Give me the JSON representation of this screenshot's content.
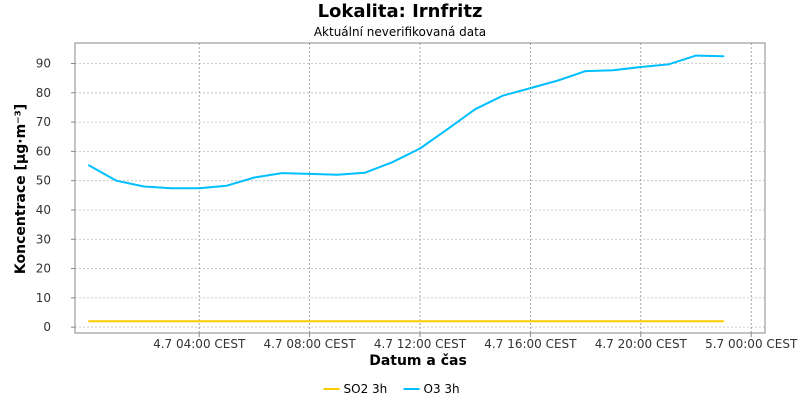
{
  "chart_data": {
    "type": "line",
    "title": "Lokalita: Irnfritz",
    "subtitle": "Aktuální neverifikovaná data",
    "xlabel": "Datum a čas",
    "ylabel": "Koncentrace [µg·m⁻³]",
    "x_tick_labels": [
      "4.7 04:00 CEST",
      "4.7 08:00 CEST",
      "4.7 12:00 CEST",
      "4.7 16:00 CEST",
      "4.7 20:00 CEST",
      "5.7 00:00 CEST"
    ],
    "x_tick_hours": [
      4,
      8,
      12,
      16,
      20,
      24
    ],
    "x_range_hours": [
      -0.5,
      24.5
    ],
    "y_ticks": [
      0,
      10,
      20,
      30,
      40,
      50,
      60,
      70,
      80,
      90
    ],
    "ylim": [
      -2,
      97
    ],
    "grid": true,
    "legend_position": "bottom-center",
    "series": [
      {
        "name": "SO2 3h",
        "color": "#FFCC00",
        "x_hours": [
          0,
          23
        ],
        "values": [
          2,
          2
        ]
      },
      {
        "name": "O3 3h",
        "color": "#00BFFF",
        "x_hours": [
          0,
          1,
          2,
          3,
          4,
          5,
          6,
          7,
          8,
          9,
          10,
          11,
          12,
          13,
          14,
          15,
          16,
          17,
          18,
          19,
          20,
          21,
          22,
          23
        ],
        "values": [
          55.3,
          50.0,
          48.0,
          47.4,
          47.4,
          48.3,
          51.1,
          52.6,
          52.3,
          52.0,
          52.7,
          56.3,
          61.0,
          67.6,
          74.4,
          79.0,
          81.6,
          84.2,
          87.4,
          87.7,
          88.8,
          89.7,
          92.7,
          92.5
        ]
      }
    ]
  }
}
